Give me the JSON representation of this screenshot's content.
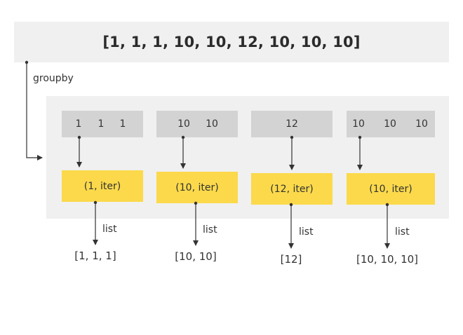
{
  "input_list": "[1, 1, 1, 10, 10, 12, 10, 10, 10]",
  "groupby_label": "groupby",
  "list_label": "list",
  "groups": [
    {
      "keys": [
        "1",
        "1",
        "1"
      ],
      "tuple": "(1, iter)",
      "result": "[1, 1, 1]"
    },
    {
      "keys": [
        "10",
        "10"
      ],
      "tuple": "(10, iter)",
      "result": "[10, 10]"
    },
    {
      "keys": [
        "12"
      ],
      "tuple": "(12, iter)",
      "result": "[12]"
    },
    {
      "keys": [
        "10",
        "10",
        "10"
      ],
      "tuple": "(10, iter)",
      "result": "[10, 10, 10]"
    }
  ],
  "colors": {
    "banner": "#f0f0f0",
    "key_box": "#d3d3d3",
    "tuple_box": "#fbd94b",
    "arrow": "#333333"
  }
}
